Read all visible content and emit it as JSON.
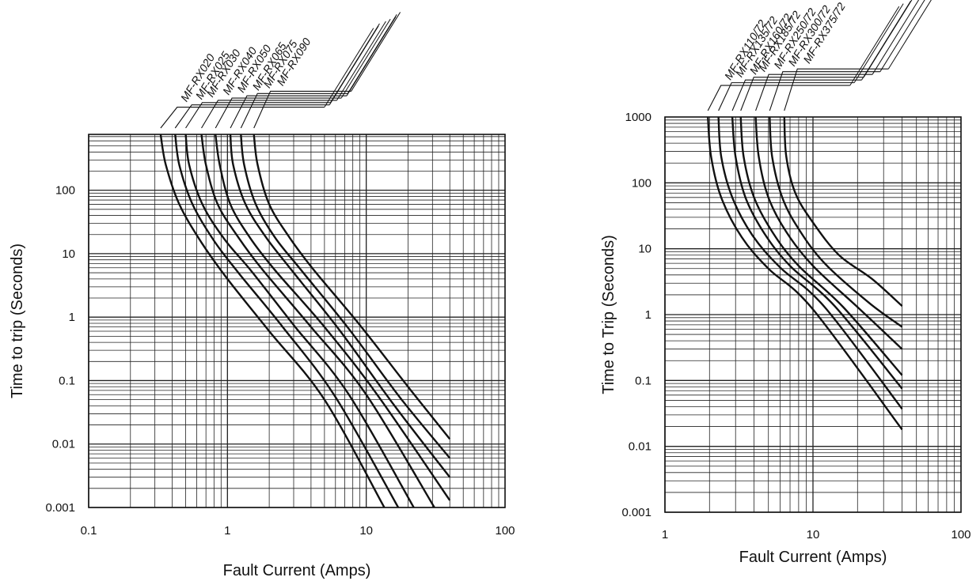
{
  "chart_data": [
    {
      "type": "line",
      "xlabel": "Fault Current (Amps)",
      "ylabel": "Time to trip (Seconds)",
      "x_scale": "log",
      "y_scale": "log",
      "xlim": [
        0.1,
        100
      ],
      "ylim": [
        0.001,
        1000
      ],
      "x_ticks": [
        "0.1",
        "1",
        "10",
        "100"
      ],
      "y_ticks": [
        "0.001",
        "0.01",
        "0.1",
        "1",
        "10",
        "100"
      ],
      "grid": true,
      "series": [
        {
          "name": "MF-RX020",
          "points": [
            [
              0.33,
              1000
            ],
            [
              0.36,
              250
            ],
            [
              0.45,
              60
            ],
            [
              0.65,
              15
            ],
            [
              1.0,
              4.0
            ],
            [
              2.0,
              0.6
            ],
            [
              5.0,
              0.05
            ],
            [
              13.5,
              0.001
            ]
          ]
        },
        {
          "name": "MF-RX025",
          "points": [
            [
              0.42,
              1000
            ],
            [
              0.45,
              250
            ],
            [
              0.56,
              60
            ],
            [
              0.8,
              16
            ],
            [
              1.2,
              5.0
            ],
            [
              2.5,
              0.7
            ],
            [
              6.0,
              0.055
            ],
            [
              17,
              0.001
            ]
          ]
        },
        {
          "name": "MF-RX030",
          "points": [
            [
              0.5,
              1000
            ],
            [
              0.53,
              250
            ],
            [
              0.66,
              60
            ],
            [
              0.95,
              17
            ],
            [
              1.5,
              5.2
            ],
            [
              3.0,
              0.75
            ],
            [
              7.5,
              0.06
            ],
            [
              22,
              0.001
            ]
          ]
        },
        {
          "name": "MF-RX040",
          "points": [
            [
              0.65,
              1000
            ],
            [
              0.7,
              250
            ],
            [
              0.85,
              60
            ],
            [
              1.2,
              18
            ],
            [
              1.8,
              5.5
            ],
            [
              4.0,
              0.7
            ],
            [
              10,
              0.06
            ],
            [
              31,
              0.001
            ]
          ]
        },
        {
          "name": "MF-RX050",
          "points": [
            [
              0.82,
              1000
            ],
            [
              0.88,
              250
            ],
            [
              1.05,
              60
            ],
            [
              1.45,
              18
            ],
            [
              2.2,
              5.5
            ],
            [
              5.0,
              0.7
            ],
            [
              12,
              0.06
            ],
            [
              40,
              0.0013
            ]
          ]
        },
        {
          "name": "MF-RX065",
          "points": [
            [
              1.05,
              1000
            ],
            [
              1.1,
              250
            ],
            [
              1.35,
              60
            ],
            [
              1.9,
              18
            ],
            [
              2.9,
              5.5
            ],
            [
              6.5,
              0.6
            ],
            [
              16,
              0.04
            ],
            [
              40,
              0.003
            ]
          ]
        },
        {
          "name": "MF-RX075",
          "points": [
            [
              1.25,
              1000
            ],
            [
              1.32,
              250
            ],
            [
              1.6,
              60
            ],
            [
              2.2,
              18
            ],
            [
              3.4,
              5.5
            ],
            [
              7.5,
              0.65
            ],
            [
              18,
              0.05
            ],
            [
              40,
              0.006
            ]
          ]
        },
        {
          "name": "MF-RX090",
          "points": [
            [
              1.55,
              1000
            ],
            [
              1.65,
              250
            ],
            [
              2.0,
              60
            ],
            [
              2.8,
              18
            ],
            [
              4.2,
              5.5
            ],
            [
              9.0,
              0.75
            ],
            [
              20,
              0.08
            ],
            [
              40,
              0.012
            ]
          ]
        }
      ]
    },
    {
      "type": "line",
      "xlabel": "Fault Current (Amps)",
      "ylabel": "Time to Trip (Seconds)",
      "x_scale": "log",
      "y_scale": "log",
      "xlim": [
        1,
        100
      ],
      "ylim": [
        0.001,
        1000
      ],
      "x_ticks": [
        "1",
        "10",
        "100"
      ],
      "y_ticks": [
        "0.001",
        "0.01",
        "0.1",
        "1",
        "10",
        "100",
        "1000"
      ],
      "grid": true,
      "series": [
        {
          "name": "MF-RX110/72",
          "points": [
            [
              1.95,
              1000
            ],
            [
              2.05,
              250
            ],
            [
              2.4,
              60
            ],
            [
              3.3,
              15
            ],
            [
              5.0,
              5.0
            ],
            [
              10,
              1.2
            ],
            [
              40,
              0.018
            ]
          ]
        },
        {
          "name": "MF-RX135/72",
          "points": [
            [
              2.3,
              1000
            ],
            [
              2.4,
              250
            ],
            [
              2.85,
              60
            ],
            [
              3.9,
              16
            ],
            [
              6.0,
              5.2
            ],
            [
              12,
              1.3
            ],
            [
              40,
              0.037
            ]
          ]
        },
        {
          "name": "MF-RX160/72",
          "points": [
            [
              2.85,
              1000
            ],
            [
              3.0,
              250
            ],
            [
              3.5,
              60
            ],
            [
              4.7,
              17
            ],
            [
              7.0,
              5.5
            ],
            [
              14,
              1.35
            ],
            [
              40,
              0.075
            ]
          ]
        },
        {
          "name": "MF-RX185/72",
          "points": [
            [
              3.25,
              1000
            ],
            [
              3.4,
              250
            ],
            [
              4.0,
              60
            ],
            [
              5.4,
              17
            ],
            [
              8.0,
              5.5
            ],
            [
              16,
              1.3
            ],
            [
              40,
              0.12
            ]
          ]
        },
        {
          "name": "MF-RX250/72",
          "points": [
            [
              4.1,
              1000
            ],
            [
              4.3,
              250
            ],
            [
              5.0,
              60
            ],
            [
              6.6,
              18
            ],
            [
              10,
              5.5
            ],
            [
              20,
              1.3
            ],
            [
              40,
              0.3
            ]
          ]
        },
        {
          "name": "MF-RX300/72",
          "points": [
            [
              5.1,
              1000
            ],
            [
              5.3,
              250
            ],
            [
              6.2,
              60
            ],
            [
              8.0,
              20
            ],
            [
              12,
              6.0
            ],
            [
              24,
              1.5
            ],
            [
              40,
              0.65
            ]
          ]
        },
        {
          "name": "MF-RX375/72",
          "points": [
            [
              6.4,
              1000
            ],
            [
              6.6,
              250
            ],
            [
              7.6,
              70
            ],
            [
              10,
              25
            ],
            [
              15,
              8.0
            ],
            [
              25,
              3.5
            ],
            [
              40,
              1.35
            ]
          ]
        }
      ]
    }
  ]
}
